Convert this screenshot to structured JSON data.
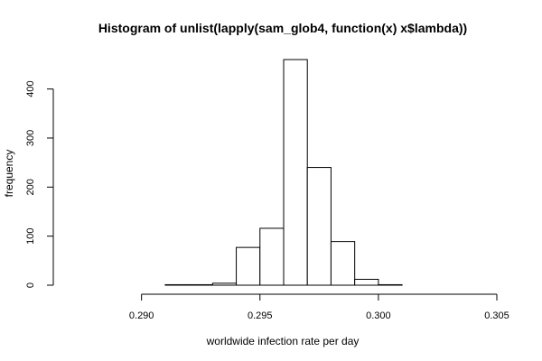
{
  "chart_data": {
    "type": "bar",
    "title": "Histogram of unlist(lapply(sam_glob4, function(x) x$lambda))",
    "xlabel": "worldwide infection rate per day",
    "ylabel": "frequency",
    "xlim": [
      0.287,
      0.305
    ],
    "ylim": [
      0,
      460
    ],
    "bins": [
      {
        "x0": 0.287,
        "x1": 0.288,
        "count": 0
      },
      {
        "x0": 0.288,
        "x1": 0.289,
        "count": 0
      },
      {
        "x0": 0.289,
        "x1": 0.29,
        "count": 0
      },
      {
        "x0": 0.29,
        "x1": 0.291,
        "count": 0
      },
      {
        "x0": 0.291,
        "x1": 0.292,
        "count": 1
      },
      {
        "x0": 0.292,
        "x1": 0.293,
        "count": 1
      },
      {
        "x0": 0.293,
        "x1": 0.294,
        "count": 4
      },
      {
        "x0": 0.294,
        "x1": 0.295,
        "count": 77
      },
      {
        "x0": 0.295,
        "x1": 0.296,
        "count": 116
      },
      {
        "x0": 0.296,
        "x1": 0.297,
        "count": 460
      },
      {
        "x0": 0.297,
        "x1": 0.298,
        "count": 240
      },
      {
        "x0": 0.298,
        "x1": 0.299,
        "count": 89
      },
      {
        "x0": 0.299,
        "x1": 0.3,
        "count": 12
      },
      {
        "x0": 0.3,
        "x1": 0.301,
        "count": 1
      },
      {
        "x0": 0.301,
        "x1": 0.302,
        "count": 0
      },
      {
        "x0": 0.302,
        "x1": 0.303,
        "count": 0
      },
      {
        "x0": 0.303,
        "x1": 0.304,
        "count": 0
      },
      {
        "x0": 0.304,
        "x1": 0.305,
        "count": 0
      }
    ],
    "x_ticks": [
      0.29,
      0.295,
      0.3,
      0.305
    ],
    "x_tick_labels": [
      "0.290",
      "0.295",
      "0.300",
      "0.305"
    ],
    "y_ticks": [
      0,
      100,
      200,
      300,
      400
    ],
    "y_tick_labels": [
      "0",
      "100",
      "200",
      "300",
      "400"
    ],
    "grid": false,
    "legend": "none",
    "bar_fill": "#ffffff",
    "bar_stroke": "#000000"
  }
}
